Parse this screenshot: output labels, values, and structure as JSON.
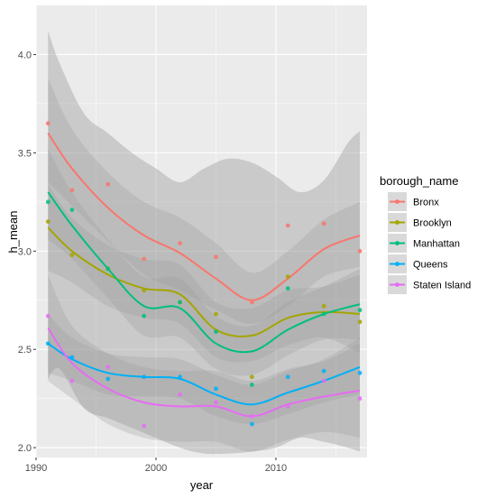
{
  "chart_data": {
    "type": "scatter",
    "xlabel": "year",
    "ylabel": "h_mean",
    "xlim": [
      1990,
      2017.6
    ],
    "ylim": [
      1.95,
      4.25
    ],
    "x_ticks": [
      "1990",
      "2000",
      "2010"
    ],
    "y_ticks": [
      "2.0",
      "2.5",
      "3.0",
      "3.5",
      "4.0"
    ],
    "grid": true,
    "smoothing": "loess",
    "legend": {
      "title": "borough_name",
      "position": "right"
    },
    "x": [
      1991,
      1993,
      1996,
      1999,
      2002,
      2005,
      2008,
      2011,
      2014,
      2017
    ],
    "series": [
      {
        "name": "Bronx",
        "color": "#F8766D",
        "values": [
          3.65,
          3.31,
          3.34,
          2.96,
          3.04,
          2.97,
          2.74,
          3.13,
          3.14,
          3.0
        ],
        "trend": [
          3.6,
          3.42,
          3.22,
          3.08,
          2.99,
          2.86,
          2.75,
          2.86,
          3.01,
          3.08
        ],
        "band": [
          [
            3.35,
            3.88
          ],
          [
            3.23,
            3.62
          ],
          [
            3.05,
            3.4
          ],
          [
            2.88,
            3.25
          ],
          [
            2.8,
            3.17
          ],
          [
            2.7,
            3.04
          ],
          [
            2.63,
            2.89
          ],
          [
            2.72,
            3.0
          ],
          [
            2.87,
            3.16
          ],
          [
            2.92,
            3.25
          ]
        ]
      },
      {
        "name": "Brooklyn",
        "color": "#A3A500",
        "values": [
          3.15,
          2.98,
          2.91,
          2.8,
          2.74,
          2.68,
          2.36,
          2.87,
          2.72,
          2.64
        ],
        "trend": [
          3.12,
          3.0,
          2.88,
          2.81,
          2.78,
          2.6,
          2.57,
          2.66,
          2.69,
          2.68
        ],
        "band": [
          [
            2.9,
            3.34
          ],
          [
            2.84,
            3.17
          ],
          [
            2.72,
            3.03
          ],
          [
            2.66,
            2.96
          ],
          [
            2.63,
            2.93
          ],
          [
            2.46,
            2.74
          ],
          [
            2.44,
            2.71
          ],
          [
            2.52,
            2.8
          ],
          [
            2.56,
            2.82
          ],
          [
            2.48,
            2.88
          ]
        ]
      },
      {
        "name": "Manhattan",
        "color": "#00BF7D",
        "values": [
          3.25,
          3.21,
          2.91,
          2.67,
          2.74,
          2.59,
          2.32,
          2.81,
          2.68,
          2.7
        ],
        "trend": [
          3.3,
          3.13,
          2.91,
          2.72,
          2.71,
          2.53,
          2.49,
          2.6,
          2.68,
          2.73
        ],
        "band": [
          [
            3.06,
            3.52
          ],
          [
            2.96,
            3.3
          ],
          [
            2.76,
            3.06
          ],
          [
            2.57,
            2.87
          ],
          [
            2.56,
            2.86
          ],
          [
            2.4,
            2.67
          ],
          [
            2.37,
            2.62
          ],
          [
            2.47,
            2.74
          ],
          [
            2.55,
            2.82
          ],
          [
            2.55,
            2.91
          ]
        ]
      },
      {
        "name": "Queens",
        "color": "#00B0F6",
        "values": [
          2.53,
          2.46,
          2.35,
          2.36,
          2.36,
          2.3,
          2.12,
          2.36,
          2.39,
          2.38
        ],
        "trend": [
          2.53,
          2.45,
          2.38,
          2.36,
          2.35,
          2.27,
          2.22,
          2.28,
          2.34,
          2.41
        ],
        "band": [
          [
            2.38,
            2.68
          ],
          [
            2.34,
            2.56
          ],
          [
            2.27,
            2.48
          ],
          [
            2.26,
            2.46
          ],
          [
            2.25,
            2.45
          ],
          [
            2.16,
            2.37
          ],
          [
            2.12,
            2.32
          ],
          [
            2.17,
            2.39
          ],
          [
            2.23,
            2.45
          ],
          [
            2.27,
            2.56
          ]
        ]
      },
      {
        "name": "Staten Island",
        "color": "#E76BF3",
        "values": [
          2.67,
          2.34,
          2.41,
          2.11,
          2.27,
          2.23,
          2.16,
          2.21,
          2.34,
          2.25
        ],
        "trend": [
          2.61,
          2.43,
          2.3,
          2.23,
          2.21,
          2.21,
          2.16,
          2.22,
          2.26,
          2.29
        ],
        "band": [
          [
            2.34,
            2.88
          ],
          [
            2.25,
            2.62
          ],
          [
            2.12,
            2.48
          ],
          [
            2.05,
            2.41
          ],
          [
            2.03,
            2.39
          ],
          [
            2.03,
            2.39
          ],
          [
            1.98,
            2.34
          ],
          [
            2.04,
            2.4
          ],
          [
            2.08,
            2.44
          ],
          [
            2.05,
            2.53
          ]
        ]
      }
    ],
    "overall_band": {
      "x": [
        1991,
        1992,
        1994,
        1996,
        1998,
        2000,
        2002,
        2004,
        2006,
        2008,
        2010,
        2012,
        2014,
        2016,
        2017
      ],
      "lower": [
        2.35,
        2.4,
        2.2,
        2.15,
        2.1,
        2.05,
        2.0,
        1.97,
        1.97,
        1.98,
        2.0,
        2.05,
        2.03,
        2.0,
        1.98
      ],
      "upper": [
        4.12,
        3.95,
        3.7,
        3.6,
        3.5,
        3.42,
        3.35,
        3.42,
        3.47,
        3.45,
        3.38,
        3.3,
        3.36,
        3.55,
        3.61
      ]
    }
  }
}
